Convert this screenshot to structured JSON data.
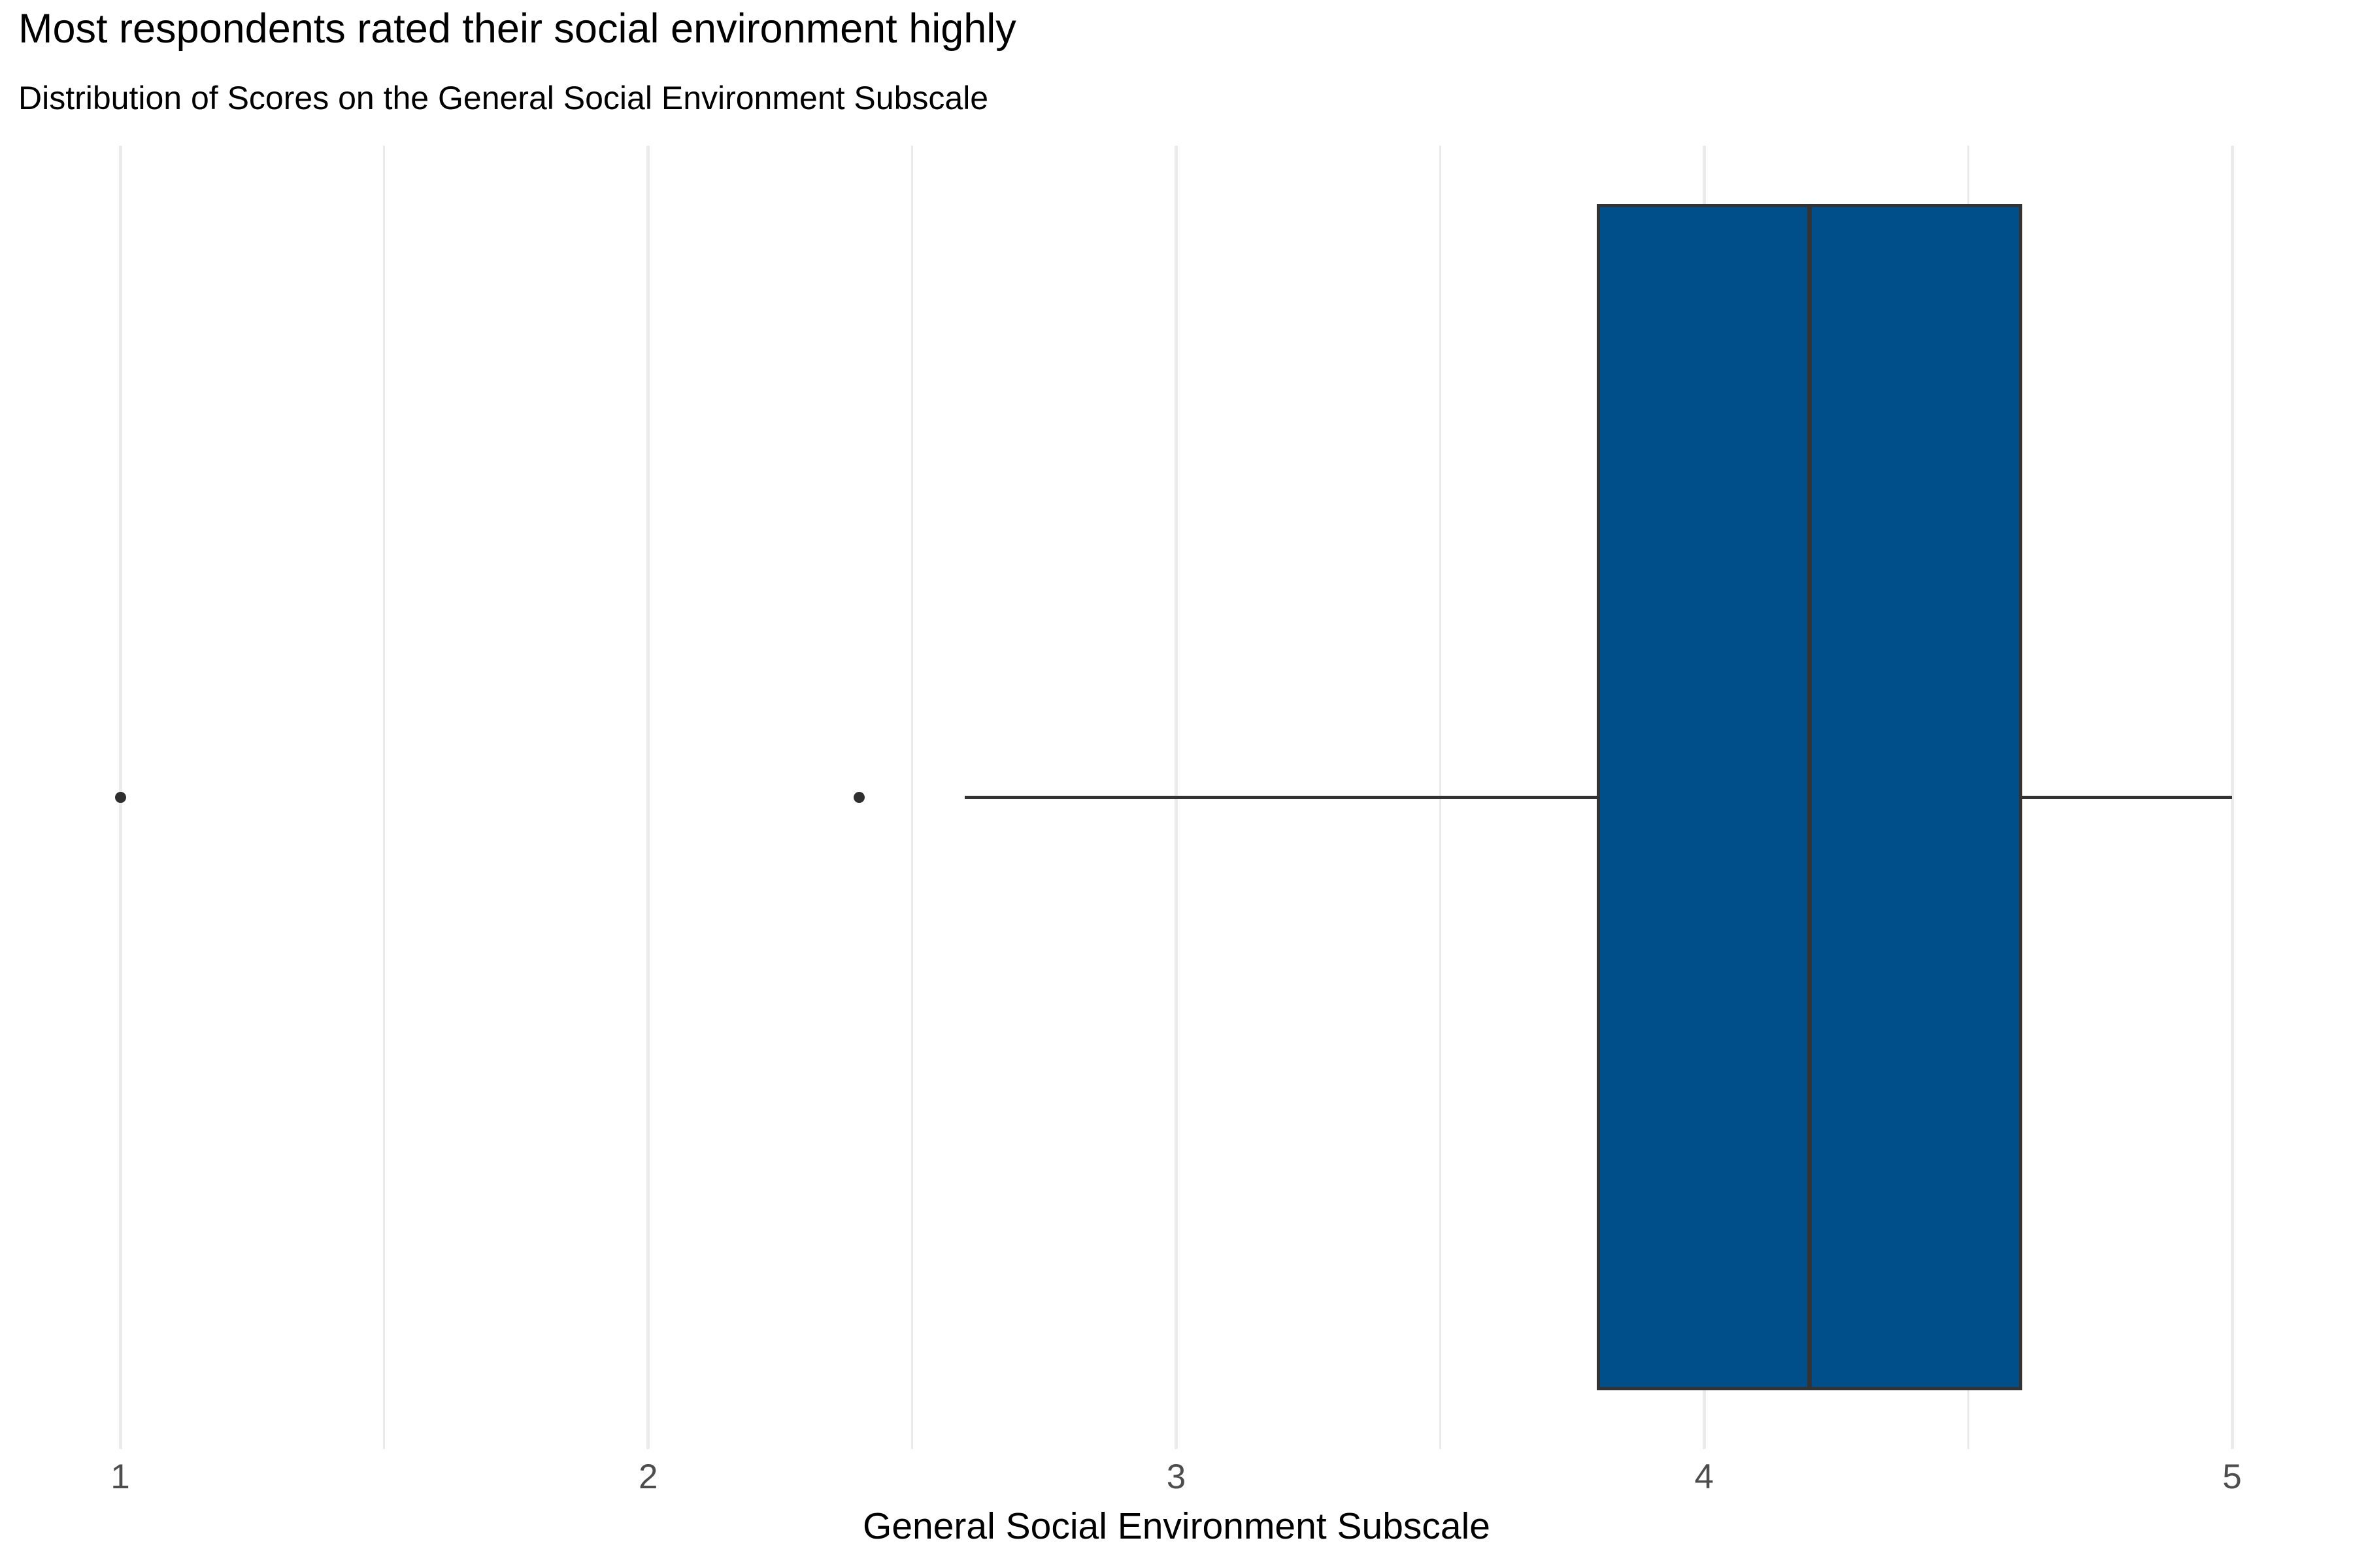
{
  "chart_data": {
    "type": "boxplot",
    "orientation": "horizontal",
    "title": "Most respondents rated their social environment highly",
    "subtitle": "Distribution of Scores on the General Social Environment Subscale",
    "xlabel": "General Social Environment Subscale",
    "x_axis": {
      "ticks": [
        1,
        2,
        3,
        4,
        5
      ],
      "minor_gridlines": [
        1.5,
        2.5,
        3.5,
        4.5
      ],
      "range_shown": [
        0.8,
        5.2
      ],
      "grid": "vertical-only"
    },
    "series": [
      {
        "name": "General Social Environment Subscale",
        "whisker_min": 2.6,
        "q1": 3.8,
        "median": 4.2,
        "q3": 4.6,
        "whisker_max": 5.0,
        "outliers": [
          1.0,
          2.4
        ]
      }
    ],
    "legend": "none"
  },
  "colors": {
    "box_fill": "#004E8A",
    "box_border": "#333333",
    "median_line": "#333333",
    "whisker": "#333333",
    "outlier_point": "#2F2F2F",
    "gridline": "#EBEBEB",
    "tick_label": "#4D4D4D",
    "title_text": "#000000",
    "axis_title_text": "#000000",
    "background": "#FFFFFF"
  }
}
